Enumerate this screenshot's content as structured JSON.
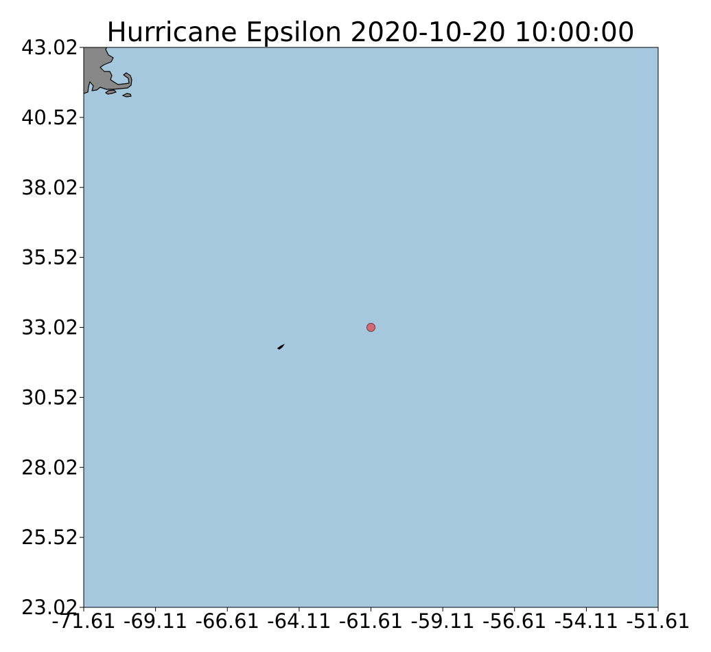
{
  "title": "Hurricane Epsilon 2020-10-20 10:00:00",
  "colors": {
    "ocean": "#a6c8df",
    "land": "#878787",
    "coastline": "#000000",
    "storm_marker": "#d16b73",
    "storm_marker_edge": "#6b3a3e"
  },
  "map": {
    "lon_range": [
      -71.61,
      -51.61
    ],
    "lat_range": [
      23.02,
      43.02
    ],
    "x_ticks": [
      "-71.61",
      "-69.11",
      "-66.61",
      "-64.11",
      "-61.61",
      "-59.11",
      "-56.61",
      "-54.11",
      "-51.61"
    ],
    "y_ticks": [
      "43.02",
      "40.52",
      "38.02",
      "35.52",
      "33.02",
      "30.52",
      "28.02",
      "25.52",
      "23.02"
    ],
    "storm_position": {
      "lon": -61.61,
      "lat": 33.02
    }
  },
  "chart_data": {
    "type": "scatter",
    "title": "Hurricane Epsilon 2020-10-20 10:00:00",
    "xlabel": "",
    "ylabel": "",
    "xlim": [
      -71.61,
      -51.61
    ],
    "ylim": [
      23.02,
      43.02
    ],
    "x_ticks": [
      -71.61,
      -69.11,
      -66.61,
      -64.11,
      -61.61,
      -59.11,
      -56.61,
      -54.11,
      -51.61
    ],
    "y_ticks": [
      43.02,
      40.52,
      38.02,
      35.52,
      33.02,
      30.52,
      28.02,
      25.52,
      23.02
    ],
    "grid": false,
    "points": [
      {
        "x": -61.61,
        "y": 33.02
      }
    ]
  }
}
